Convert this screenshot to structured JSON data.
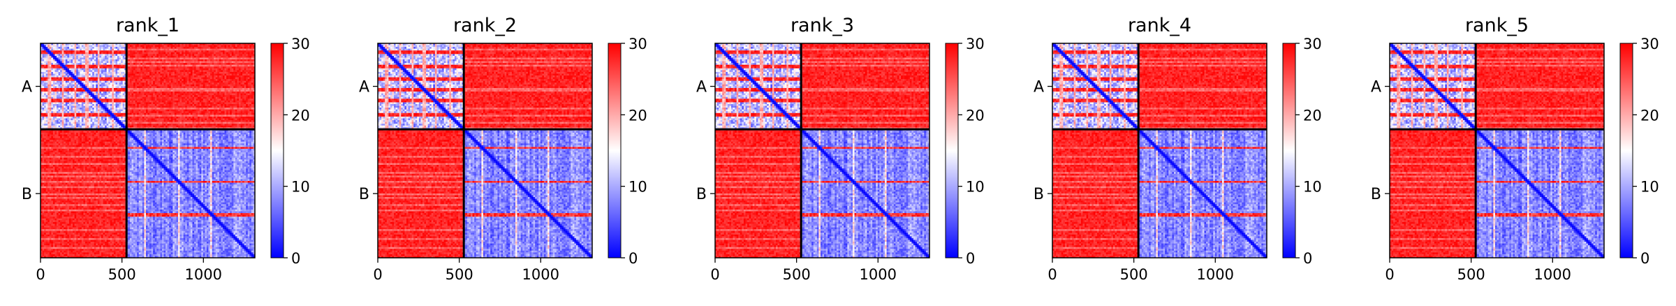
{
  "chart_data": {
    "type": "heatmap",
    "colormap": {
      "name": "bwr",
      "low": "#0000ff",
      "mid": "#ffffff",
      "high": "#ff0000"
    },
    "value_range": [
      0,
      30
    ],
    "colorbar_ticks": [
      "0",
      "10",
      "20",
      "30"
    ],
    "x_range": [
      0,
      1316
    ],
    "x_ticks": [
      {
        "value": 0,
        "label": "0"
      },
      {
        "value": 500,
        "label": "500"
      },
      {
        "value": 1000,
        "label": "1000"
      }
    ],
    "chain_boundary": 528,
    "chains": [
      {
        "label": "A",
        "start": 0,
        "end": 528
      },
      {
        "label": "B",
        "start": 528,
        "end": 1316
      }
    ],
    "block_means": {
      "A_A": 9,
      "A_B": 30,
      "B_A": 30,
      "B_B": 6
    },
    "stripes_A": [
      55,
      140,
      215,
      285,
      355,
      440
    ],
    "stripes_B": [
      640,
      850,
      1050
    ],
    "panels": [
      {
        "title": "rank_1"
      },
      {
        "title": "rank_2"
      },
      {
        "title": "rank_3"
      },
      {
        "title": "rank_4"
      },
      {
        "title": "rank_5"
      }
    ]
  }
}
